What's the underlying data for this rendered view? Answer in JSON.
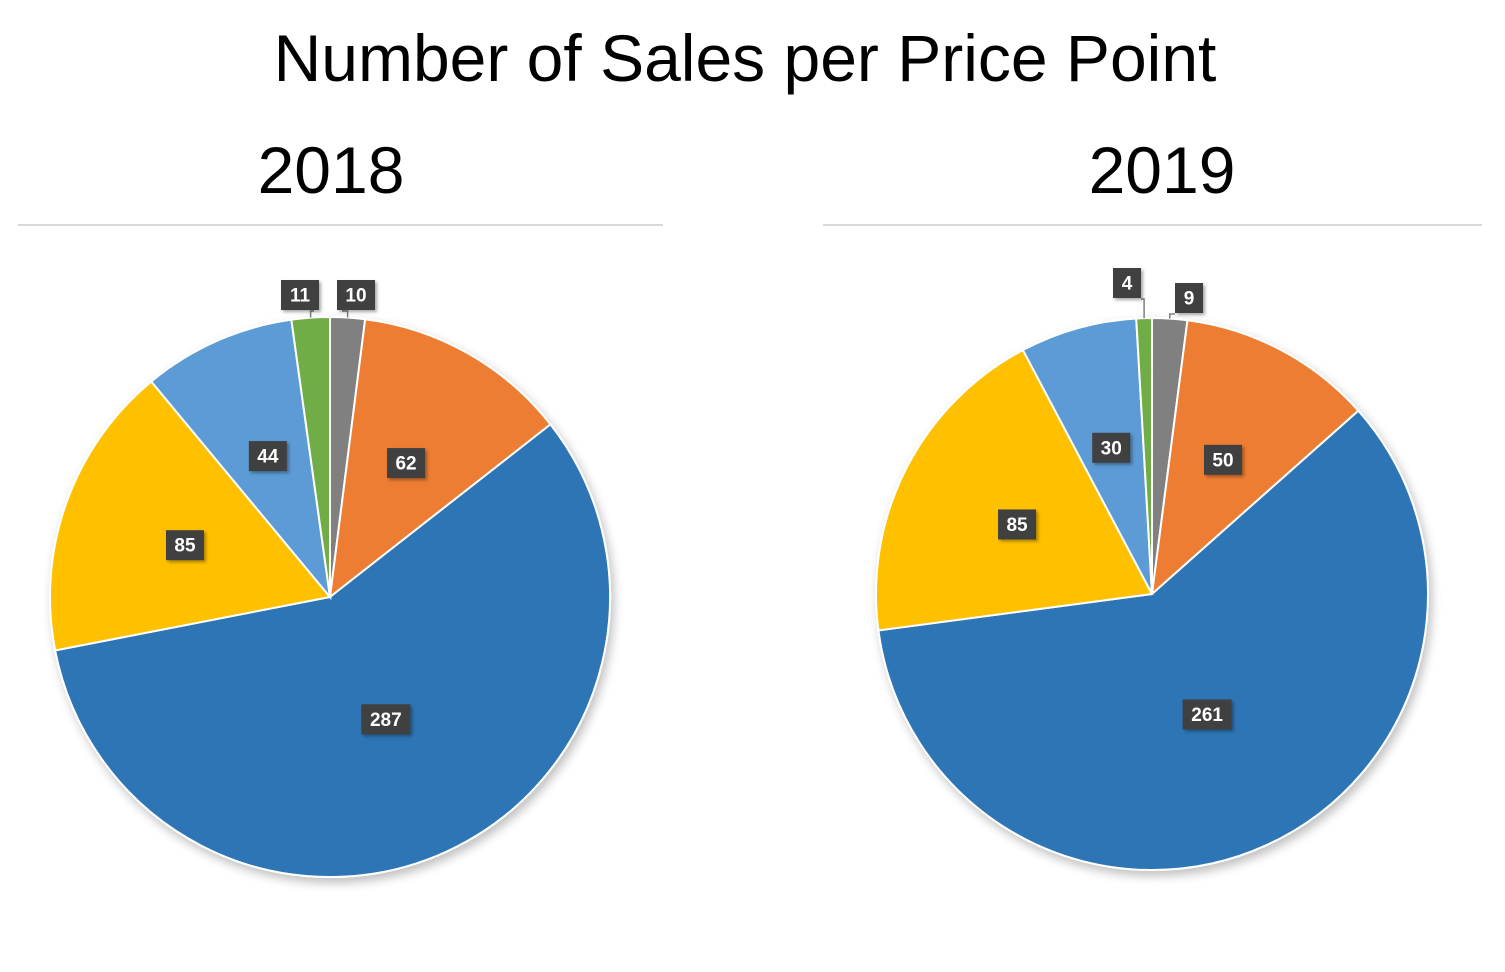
{
  "title": "Number of Sales per Price Point",
  "colors": {
    "slice_colors": [
      "#2e75b6",
      "#ffc000",
      "#5b9bd5",
      "#70ad47",
      "#808080",
      "#ed7d31"
    ],
    "label_background": "#404040",
    "label_text": "#ffffff",
    "divider": "#d9d9d9"
  },
  "chart_data": [
    {
      "type": "pie",
      "title": "2018",
      "values": [
        287,
        85,
        44,
        11,
        10,
        62
      ],
      "data_labels": [
        "287",
        "85",
        "44",
        "11",
        "10",
        "62"
      ]
    },
    {
      "type": "pie",
      "title": "2019",
      "values": [
        261,
        85,
        30,
        4,
        9,
        50
      ],
      "data_labels": [
        "261",
        "85",
        "30",
        "4",
        "9",
        "50"
      ]
    }
  ]
}
